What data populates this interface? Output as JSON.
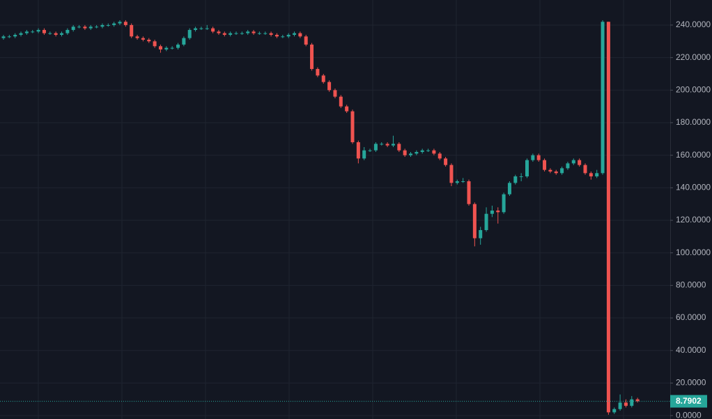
{
  "chart_data": {
    "type": "candlestick",
    "up_color": "#26a69a",
    "down_color": "#ef5350",
    "ylim": [
      -2.1,
      255.4
    ],
    "yticks": [
      {
        "value": 0,
        "label": "0.0000"
      },
      {
        "value": 20,
        "label": "20.0000"
      },
      {
        "value": 40,
        "label": "40.0000"
      },
      {
        "value": 60,
        "label": "60.0000"
      },
      {
        "value": 80,
        "label": "80.0000"
      },
      {
        "value": 100,
        "label": "100.0000"
      },
      {
        "value": 120,
        "label": "120.0000"
      },
      {
        "value": 140,
        "label": "140.0000"
      },
      {
        "value": 160,
        "label": "160.0000"
      },
      {
        "value": 180,
        "label": "180.0000"
      },
      {
        "value": 200,
        "label": "200.0000"
      },
      {
        "value": 220,
        "label": "220.0000"
      },
      {
        "value": 240,
        "label": "240.0000"
      }
    ],
    "grid": true,
    "last_price": 8.7902,
    "candles": [
      [
        232,
        234,
        231,
        233
      ],
      [
        233,
        234,
        232,
        233
      ],
      [
        233,
        235,
        232,
        234
      ],
      [
        234,
        236,
        233,
        235
      ],
      [
        235,
        237,
        234,
        236
      ],
      [
        236,
        237,
        235,
        236
      ],
      [
        236,
        238,
        235,
        237
      ],
      [
        237,
        238,
        234,
        235
      ],
      [
        235,
        236,
        234,
        235
      ],
      [
        235,
        236,
        233,
        234
      ],
      [
        234,
        236,
        233,
        235
      ],
      [
        235,
        238,
        234,
        237
      ],
      [
        237,
        240,
        236,
        239
      ],
      [
        239,
        240,
        238,
        239
      ],
      [
        239,
        240,
        237,
        238
      ],
      [
        238,
        240,
        237,
        239
      ],
      [
        239,
        240,
        238,
        239
      ],
      [
        239,
        241,
        238,
        240
      ],
      [
        240,
        241,
        239,
        240
      ],
      [
        240,
        242,
        239,
        241
      ],
      [
        241,
        243,
        240,
        242
      ],
      [
        242,
        243,
        239,
        240
      ],
      [
        240,
        241,
        232,
        233
      ],
      [
        233,
        234,
        231,
        232
      ],
      [
        232,
        233,
        230,
        231
      ],
      [
        231,
        232,
        229,
        230
      ],
      [
        230,
        231,
        226,
        227
      ],
      [
        227,
        228,
        223,
        225
      ],
      [
        225,
        227,
        224,
        226
      ],
      [
        226,
        227,
        225,
        226
      ],
      [
        226,
        229,
        225,
        228
      ],
      [
        228,
        233,
        227,
        232
      ],
      [
        232,
        238,
        231,
        237
      ],
      [
        237,
        239,
        236,
        238
      ],
      [
        238,
        239,
        237,
        238
      ],
      [
        238,
        240,
        237,
        238
      ],
      [
        238,
        239,
        235,
        236
      ],
      [
        236,
        237,
        234,
        235
      ],
      [
        235,
        236,
        233,
        234
      ],
      [
        234,
        236,
        233,
        235
      ],
      [
        235,
        236,
        234,
        235
      ],
      [
        235,
        236,
        234,
        235
      ],
      [
        235,
        237,
        234,
        236
      ],
      [
        236,
        237,
        234,
        235
      ],
      [
        235,
        236,
        234,
        235
      ],
      [
        235,
        236,
        234,
        235
      ],
      [
        235,
        236,
        233,
        234
      ],
      [
        234,
        235,
        232,
        233
      ],
      [
        233,
        234,
        232,
        233
      ],
      [
        233,
        235,
        232,
        234
      ],
      [
        234,
        236,
        233,
        235
      ],
      [
        235,
        236,
        232,
        233
      ],
      [
        233,
        234,
        227,
        228
      ],
      [
        228,
        229,
        212,
        213
      ],
      [
        213,
        214,
        208,
        209
      ],
      [
        209,
        210,
        204,
        205
      ],
      [
        205,
        206,
        199,
        200
      ],
      [
        200,
        201,
        195,
        196
      ],
      [
        196,
        197,
        189,
        190
      ],
      [
        190,
        191,
        186,
        187
      ],
      [
        187,
        188,
        167,
        168
      ],
      [
        168,
        169,
        155,
        158
      ],
      [
        158,
        165,
        157,
        163
      ],
      [
        163,
        164,
        162,
        163
      ],
      [
        163,
        168,
        162,
        167
      ],
      [
        167,
        168,
        166,
        167
      ],
      [
        167,
        168,
        165,
        166
      ],
      [
        166,
        172,
        165,
        167
      ],
      [
        167,
        168,
        162,
        163
      ],
      [
        163,
        164,
        159,
        160
      ],
      [
        160,
        162,
        159,
        161
      ],
      [
        161,
        163,
        160,
        162
      ],
      [
        162,
        164,
        161,
        163
      ],
      [
        163,
        164,
        162,
        163
      ],
      [
        163,
        164,
        160,
        161
      ],
      [
        161,
        162,
        157,
        158
      ],
      [
        158,
        159,
        153,
        154
      ],
      [
        154,
        155,
        141,
        143
      ],
      [
        143,
        145,
        142,
        144
      ],
      [
        144,
        146,
        143,
        144
      ],
      [
        144,
        145,
        129,
        130
      ],
      [
        130,
        131,
        104,
        109
      ],
      [
        109,
        116,
        105,
        114
      ],
      [
        114,
        128,
        113,
        124
      ],
      [
        124,
        129,
        122,
        126
      ],
      [
        126,
        128,
        118,
        125
      ],
      [
        125,
        137,
        124,
        136
      ],
      [
        136,
        144,
        135,
        143
      ],
      [
        143,
        148,
        142,
        147
      ],
      [
        147,
        149,
        144,
        147
      ],
      [
        147,
        158,
        146,
        157
      ],
      [
        157,
        161,
        156,
        160
      ],
      [
        160,
        161,
        156,
        157
      ],
      [
        157,
        158,
        150,
        151
      ],
      [
        151,
        152,
        149,
        150
      ],
      [
        150,
        151,
        148,
        149
      ],
      [
        149,
        153,
        148,
        152
      ],
      [
        152,
        156,
        151,
        155
      ],
      [
        155,
        158,
        154,
        157
      ],
      [
        157,
        158,
        153,
        154
      ],
      [
        154,
        155,
        148,
        149
      ],
      [
        149,
        150,
        145,
        147
      ],
      [
        147,
        151,
        146,
        149
      ],
      [
        149,
        243,
        148,
        242
      ],
      [
        242,
        242,
        0.5,
        2
      ],
      [
        2,
        5,
        1,
        4
      ],
      [
        4,
        13,
        3,
        8
      ],
      [
        8,
        10,
        5,
        6
      ],
      [
        6,
        12,
        5,
        10
      ],
      [
        10,
        11,
        8,
        8.7902
      ]
    ]
  }
}
